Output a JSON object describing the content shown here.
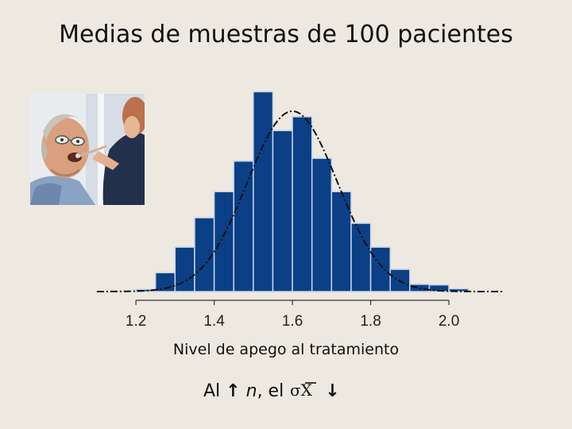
{
  "page": {
    "title": "Medias de muestras de 100 pacientes",
    "xlabel": "Nivel de apego al tratamiento",
    "caption": {
      "prefix": "Al",
      "up_arrow": "↑",
      "n": "n",
      "middle": ", el",
      "symbol": "σX",
      "down_arrow": "↓"
    }
  },
  "colors": {
    "background": "#ede9e0",
    "bar_fill": "#0b3f86",
    "bar_stroke": "#c8d4e6",
    "curve": "#111111"
  },
  "chart_data": {
    "type": "bar",
    "title": "Medias de muestras de 100 pacientes",
    "xlabel": "Nivel de apego al tratamiento",
    "ylabel": "",
    "bin_width": 0.05,
    "bins_left": [
      1.2,
      1.25,
      1.3,
      1.35,
      1.4,
      1.45,
      1.5,
      1.55,
      1.6,
      1.65,
      1.7,
      1.75,
      1.8,
      1.85,
      1.9,
      1.95,
      2.0
    ],
    "values": [
      0.4,
      3.4,
      8.0,
      13.3,
      18.0,
      23.5,
      36.0,
      29.0,
      31.5,
      24.0,
      18.0,
      12.3,
      8.0,
      4.0,
      1.3,
      1.2,
      0.5
    ],
    "overlay": {
      "type": "normal_curve",
      "mean": 1.6,
      "sd": 0.115,
      "peak": 32.5,
      "style": "dash-dot"
    },
    "xticks": [
      "1.2",
      "1.4",
      "1.6",
      "1.8",
      "2.0"
    ],
    "xlim": [
      1.08,
      2.14
    ],
    "ylim": [
      0,
      37.5
    ],
    "grid": false,
    "legend": "none"
  }
}
